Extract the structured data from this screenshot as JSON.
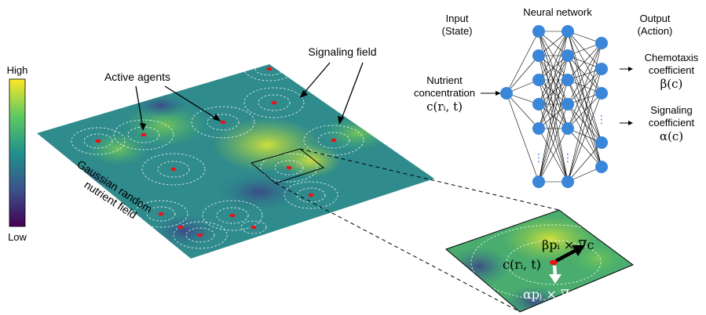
{
  "colorbar": {
    "high": "High",
    "low": "Low"
  },
  "field": {
    "nutrient_label_line1": "Gaussian random",
    "nutrient_label_line2": "nutrient field",
    "active_agents": "Active agents",
    "signaling_field": "Signaling field"
  },
  "network": {
    "input_title": "Input",
    "input_subtitle": "(State)",
    "hidden_title": "Neural network",
    "output_title": "Output",
    "output_subtitle": "(Action)",
    "input_line1": "Nutrient",
    "input_line2": "concentration",
    "input_math": "c(rᵢ, t)",
    "out1_line1": "Chemotaxis",
    "out1_line2": "coefficient",
    "out1_math": "β(c)",
    "out2_line1": "Signaling",
    "out2_line2": "coefficient",
    "out2_math": "α(c)",
    "ellipsis": "⋮"
  },
  "zoom": {
    "grad_c": "βpᵢ × ∇c",
    "state": "c(rᵢ, t)",
    "grad_rho": "αpᵢ × ∇ρ"
  },
  "colors": {
    "agent": "#e8141a",
    "node": "#3a86d9",
    "colormap": [
      "#440154",
      "#3b528b",
      "#21918c",
      "#5ec962",
      "#fde725"
    ]
  }
}
